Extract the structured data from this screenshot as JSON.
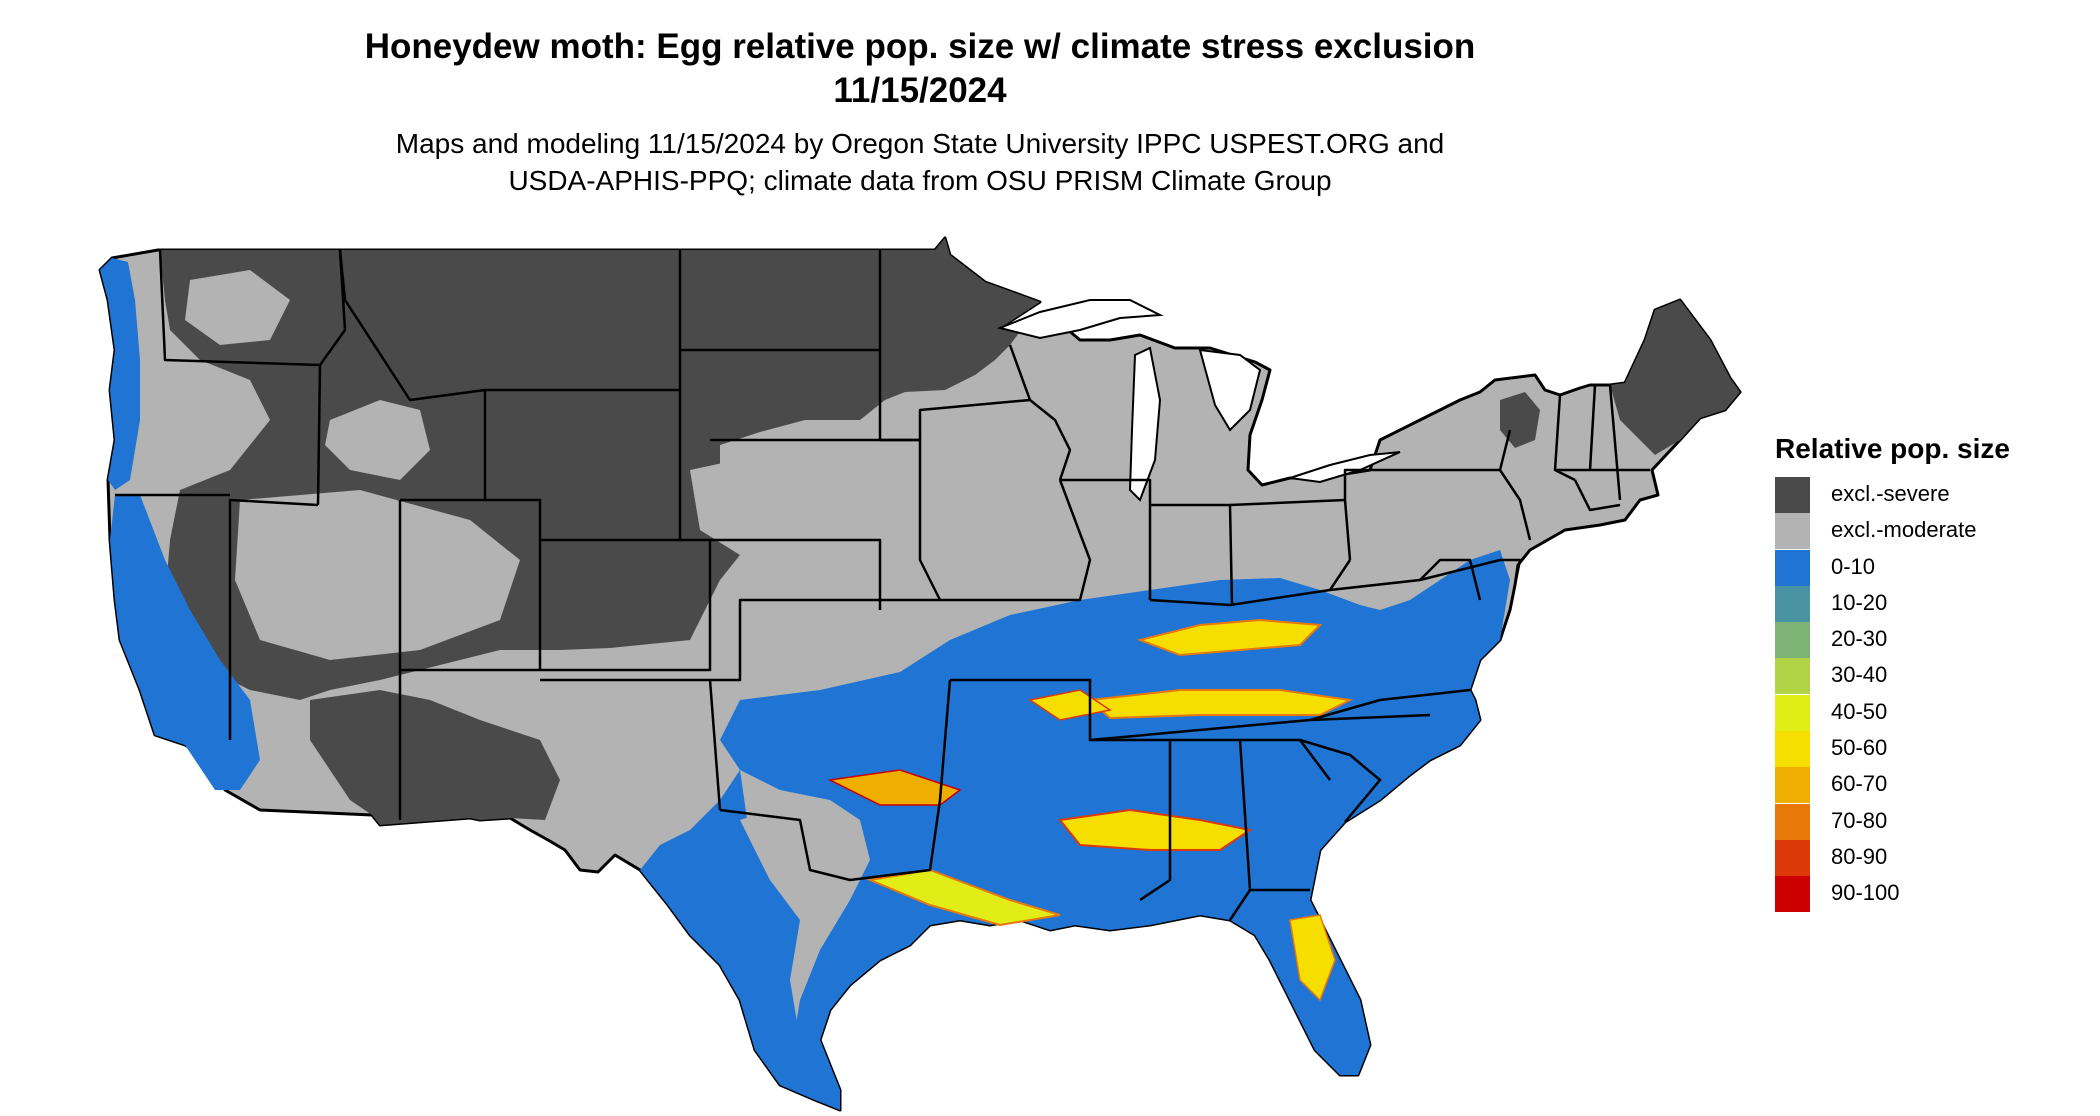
{
  "title_line1": "Honeydew moth: Egg relative pop. size w/ climate stress exclusion",
  "title_line2": "11/15/2024",
  "subtitle_line1": "Maps and modeling 11/15/2024 by Oregon State University IPPC USPEST.ORG and",
  "subtitle_line2": "USDA-APHIS-PPQ; climate data from OSU PRISM Climate Group",
  "legend": {
    "title": "Relative pop. size",
    "items": [
      {
        "label": "excl.-severe",
        "color": "#4a4a4a"
      },
      {
        "label": "excl.-moderate",
        "color": "#b3b3b3"
      },
      {
        "label": "0-10",
        "color": "#1f74d4"
      },
      {
        "label": "10-20",
        "color": "#4a93a3"
      },
      {
        "label": "20-30",
        "color": "#7db374"
      },
      {
        "label": "30-40",
        "color": "#b0d445"
      },
      {
        "label": "40-50",
        "color": "#e2ec17"
      },
      {
        "label": "50-60",
        "color": "#f6de00"
      },
      {
        "label": "60-70",
        "color": "#f0ae00"
      },
      {
        "label": "70-80",
        "color": "#e8780a"
      },
      {
        "label": "80-90",
        "color": "#db3a08"
      },
      {
        "label": "90-100",
        "color": "#cc0000"
      }
    ]
  }
}
